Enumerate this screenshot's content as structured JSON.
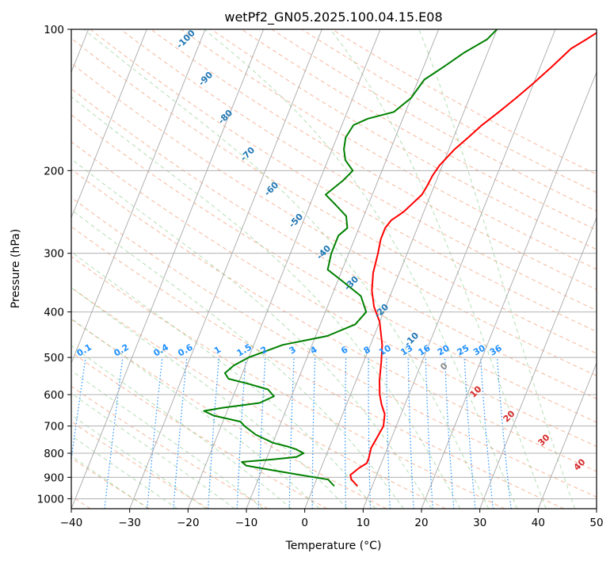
{
  "chart_data": {
    "type": "line",
    "title": "wetPf2_GN05.2025.100.04.15.E08",
    "xlabel": "Temperature (°C)",
    "ylabel": "Pressure (hPa)",
    "xlim": [
      -40,
      50
    ],
    "ylim": [
      1050,
      100
    ],
    "y_scale": "log",
    "x_ticks": [
      "−40",
      "−30",
      "−20",
      "−10",
      "0",
      "10",
      "20",
      "30",
      "40",
      "50"
    ],
    "y_ticks": [
      "100",
      "200",
      "300",
      "400",
      "500",
      "600",
      "700",
      "800",
      "900",
      "1000"
    ],
    "grid": true,
    "series": [
      {
        "color": "#ff0000",
        "points": [
          [
            7.5,
            940
          ],
          [
            6,
            910
          ],
          [
            5.5,
            890
          ],
          [
            6.5,
            860
          ],
          [
            7.5,
            840
          ],
          [
            7.5,
            820
          ],
          [
            7.2,
            780
          ],
          [
            7.5,
            740
          ],
          [
            7.8,
            700
          ],
          [
            7.2,
            660
          ],
          [
            6,
            630
          ],
          [
            5,
            600
          ],
          [
            4,
            560
          ],
          [
            3,
            510
          ],
          [
            2,
            470
          ],
          [
            0,
            420
          ],
          [
            -2,
            390
          ],
          [
            -3.5,
            360
          ],
          [
            -4.5,
            330
          ],
          [
            -5,
            300
          ],
          [
            -5.5,
            280
          ],
          [
            -5.5,
            265
          ],
          [
            -5,
            255
          ],
          [
            -3.5,
            245
          ],
          [
            -2.5,
            235
          ],
          [
            -1.5,
            225
          ],
          [
            -1.2,
            215
          ],
          [
            -1,
            205
          ],
          [
            -0.5,
            195
          ],
          [
            1,
            180
          ],
          [
            2.5,
            170
          ],
          [
            4,
            160
          ],
          [
            6,
            150
          ],
          [
            8,
            140
          ],
          [
            10,
            130
          ],
          [
            12,
            120
          ],
          [
            14,
            110
          ],
          [
            16,
            105
          ],
          [
            18,
            100
          ]
        ]
      },
      {
        "color": "#008000",
        "points": [
          [
            3.5,
            940
          ],
          [
            2,
            910
          ],
          [
            -3,
            890
          ],
          [
            -8,
            870
          ],
          [
            -13,
            850
          ],
          [
            -14,
            835
          ],
          [
            -9,
            825
          ],
          [
            -5,
            815
          ],
          [
            -4,
            800
          ],
          [
            -5.5,
            785
          ],
          [
            -7,
            775
          ],
          [
            -10,
            760
          ],
          [
            -13.5,
            730
          ],
          [
            -16,
            700
          ],
          [
            -17,
            685
          ],
          [
            -22,
            665
          ],
          [
            -24,
            650
          ],
          [
            -21,
            640
          ],
          [
            -15,
            625
          ],
          [
            -13,
            605
          ],
          [
            -14.5,
            585
          ],
          [
            -18,
            570
          ],
          [
            -22,
            555
          ],
          [
            -23,
            540
          ],
          [
            -22,
            520
          ],
          [
            -20,
            500
          ],
          [
            -15,
            470
          ],
          [
            -8,
            450
          ],
          [
            -4,
            425
          ],
          [
            -3,
            400
          ],
          [
            -5,
            370
          ],
          [
            -9,
            345
          ],
          [
            -12.5,
            325
          ],
          [
            -13,
            300
          ],
          [
            -13,
            275
          ],
          [
            -12,
            265
          ],
          [
            -13,
            250
          ],
          [
            -15.5,
            237
          ],
          [
            -18,
            225
          ],
          [
            -16,
            210
          ],
          [
            -15,
            200
          ],
          [
            -17,
            190
          ],
          [
            -18,
            180
          ],
          [
            -18.5,
            170
          ],
          [
            -18,
            160
          ],
          [
            -16,
            155
          ],
          [
            -12,
            150
          ],
          [
            -10,
            140
          ],
          [
            -9,
            128
          ],
          [
            -6.5,
            120
          ],
          [
            -4,
            112
          ],
          [
            -1,
            105
          ],
          [
            0,
            100
          ]
        ]
      }
    ],
    "dry_adiabat_labels": [
      "-100",
      "-90",
      "-80",
      "-70",
      "-60",
      "-50",
      "-40",
      "-30",
      "-20",
      "-10"
    ],
    "mixing_ratio_labels": [
      "0.1",
      "0.2",
      "0.4",
      "0.6",
      "1",
      "1.5",
      "2",
      "3",
      "4",
      "6",
      "8",
      "10",
      "13",
      "16",
      "20",
      "25",
      "30",
      "36"
    ],
    "moist_adiabat_labels": [
      "0",
      "10",
      "20",
      "30",
      "40"
    ]
  }
}
